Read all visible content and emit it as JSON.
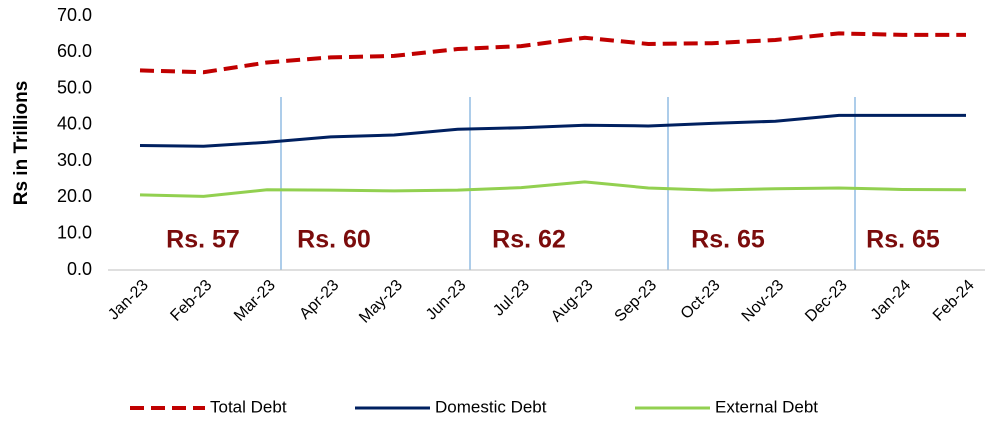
{
  "chart_data": {
    "type": "line",
    "y_label": "Rs in Trillions",
    "categories": [
      "Jan-23",
      "Feb-23",
      "Mar-23",
      "Apr-23",
      "May-23",
      "Jun-23",
      "Jul-23",
      "Aug-23",
      "Sep-23",
      "Oct-23",
      "Nov-23",
      "Dec-23",
      "Jan-24",
      "Feb-24"
    ],
    "series": [
      {
        "name": "Total Debt",
        "color": "#c00000",
        "dashed": true,
        "values": [
          55.0,
          54.5,
          57.2,
          58.6,
          59.0,
          60.9,
          61.7,
          64.0,
          62.3,
          62.5,
          63.4,
          65.2,
          64.8,
          64.8
        ]
      },
      {
        "name": "Domestic Debt",
        "color": "#002060",
        "values": [
          34.3,
          34.1,
          35.2,
          36.7,
          37.2,
          38.8,
          39.2,
          39.9,
          39.7,
          40.4,
          41.0,
          42.6,
          42.6,
          42.6
        ]
      },
      {
        "name": "External Debt",
        "color": "#92d050",
        "values": [
          20.7,
          20.3,
          22.1,
          22.0,
          21.8,
          22.0,
          22.7,
          24.3,
          22.6,
          22.0,
          22.4,
          22.6,
          22.2,
          22.1
        ]
      }
    ],
    "ylim": [
      0,
      70
    ],
    "yticks": [
      {
        "value": 0,
        "label": "0.0"
      },
      {
        "value": 10,
        "label": "10.0"
      },
      {
        "value": 20,
        "label": "20.0"
      },
      {
        "value": 30,
        "label": "30.0"
      },
      {
        "value": 40,
        "label": "40.0"
      },
      {
        "value": 50,
        "label": "50.0"
      },
      {
        "value": 60,
        "label": "60.0"
      },
      {
        "value": 70,
        "label": "70.0"
      }
    ],
    "annotations": [
      "Rs. 57",
      "Rs. 60",
      "Rs. 62",
      "Rs. 65",
      "Rs. 65"
    ],
    "legend_position": "bottom"
  }
}
